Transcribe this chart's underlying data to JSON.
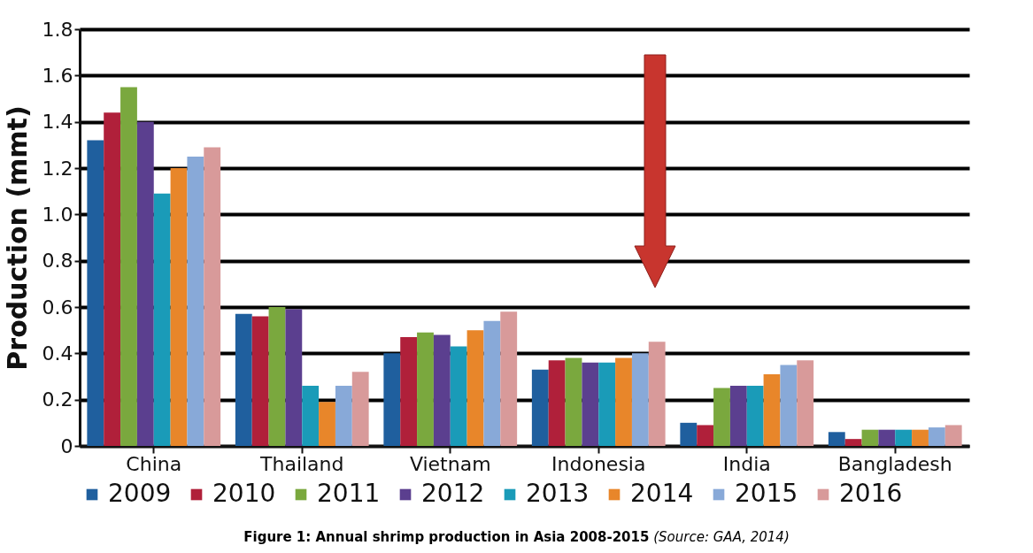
{
  "chart_data": {
    "type": "bar",
    "title": "Figure 1: Annual shrimp production in Asia 2008-2015",
    "annotations": [
      "(Source: GAA, 2014)"
    ],
    "ylabel": "Production (mmt)",
    "categories": [
      "China",
      "Thailand",
      "Vietnam",
      "Indonesia",
      "India",
      "Bangladesh"
    ],
    "series": [
      {
        "name": "2009",
        "color": "#1f5f9e",
        "values": [
          1.32,
          0.57,
          0.4,
          0.33,
          0.1,
          0.06
        ]
      },
      {
        "name": "2010",
        "color": "#b0203a",
        "values": [
          1.44,
          0.56,
          0.47,
          0.37,
          0.09,
          0.03
        ]
      },
      {
        "name": "2011",
        "color": "#7aa83e",
        "values": [
          1.55,
          0.6,
          0.49,
          0.38,
          0.25,
          0.07
        ]
      },
      {
        "name": "2012",
        "color": "#5b3f8f",
        "values": [
          1.4,
          0.59,
          0.48,
          0.36,
          0.26,
          0.07
        ]
      },
      {
        "name": "2013",
        "color": "#1a9bb8",
        "values": [
          1.09,
          0.26,
          0.43,
          0.36,
          0.26,
          0.07
        ]
      },
      {
        "name": "2014",
        "color": "#e8862a",
        "values": [
          1.2,
          0.19,
          0.5,
          0.38,
          0.31,
          0.07
        ]
      },
      {
        "name": "2015",
        "color": "#88a9d8",
        "values": [
          1.25,
          0.26,
          0.54,
          0.4,
          0.35,
          0.08
        ]
      },
      {
        "name": "2016",
        "color": "#d89a9a",
        "values": [
          1.29,
          0.32,
          0.58,
          0.45,
          0.37,
          0.09
        ]
      }
    ],
    "ylim": [
      0,
      1.8
    ],
    "yticks": [
      0,
      0.2,
      0.4,
      0.6,
      0.8,
      {
        "value": 1,
        "label": "1.0"
      },
      1.2,
      1.4,
      1.6,
      1.8
    ],
    "grid": "y",
    "legend": "bottom"
  }
}
